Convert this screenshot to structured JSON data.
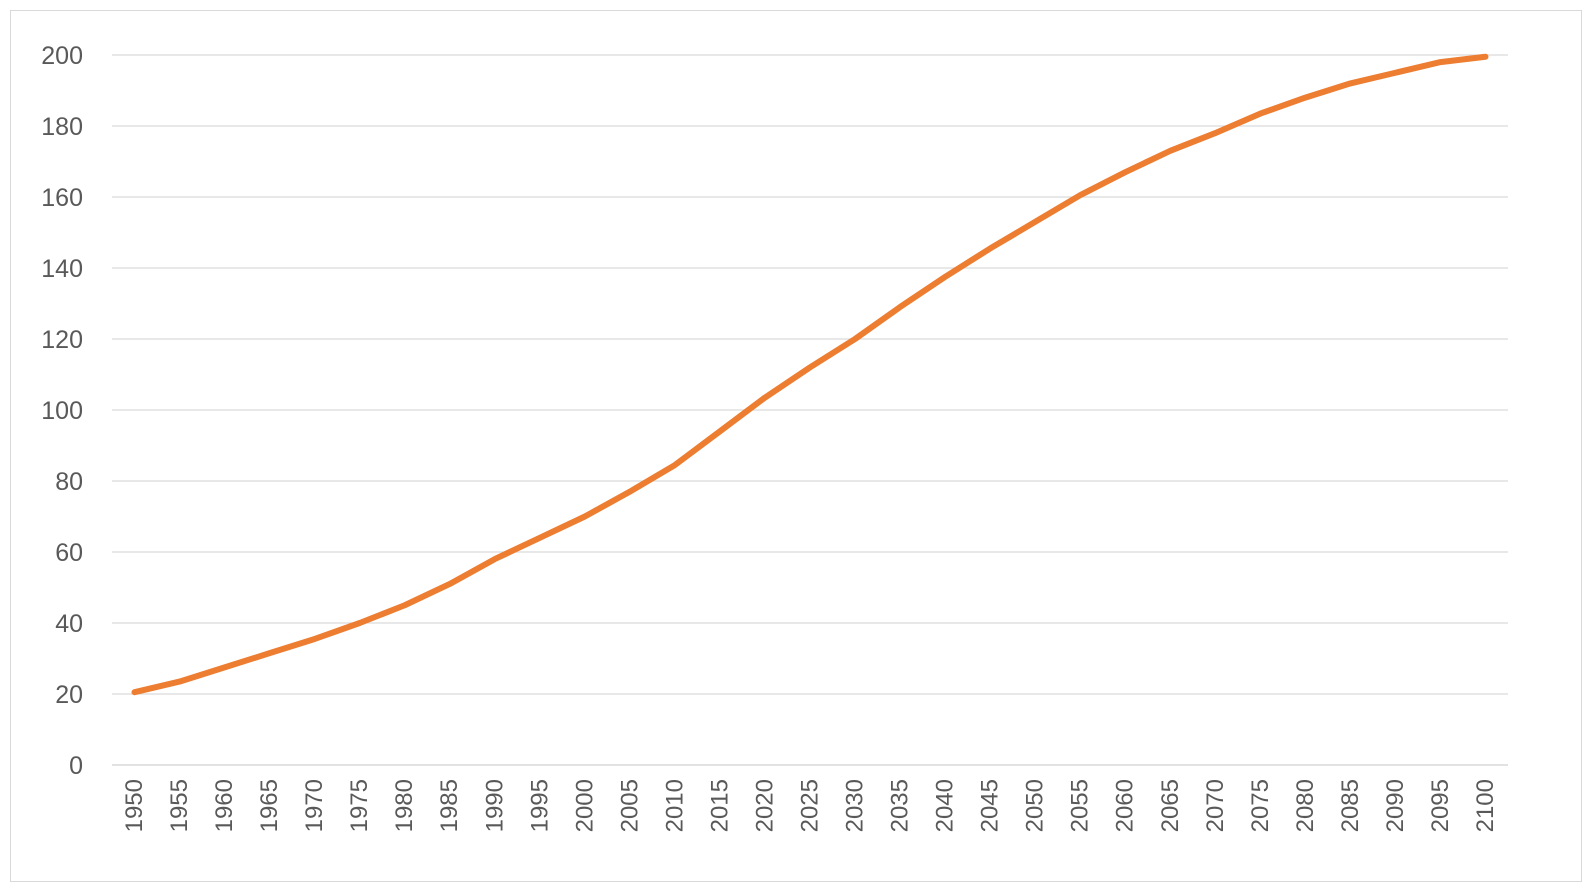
{
  "chart_data": {
    "type": "line",
    "title": "",
    "xlabel": "",
    "ylabel": "",
    "ylim": [
      0,
      200
    ],
    "yticks": [
      0,
      20,
      40,
      60,
      80,
      100,
      120,
      140,
      160,
      180,
      200
    ],
    "grid": true,
    "legend": "none",
    "x": [
      "1950",
      "1955",
      "1960",
      "1965",
      "1970",
      "1975",
      "1980",
      "1985",
      "1990",
      "1995",
      "2000",
      "2005",
      "2010",
      "2015",
      "2020",
      "2025",
      "2030",
      "2035",
      "2040",
      "2045",
      "2050",
      "2055",
      "2060",
      "2065",
      "2070",
      "2075",
      "2080",
      "2085",
      "2090",
      "2095",
      "2100"
    ],
    "series": [
      {
        "color": "#ED7D31",
        "values": [
          20.5,
          23.5,
          27.5,
          31.5,
          35.5,
          40,
          45,
          51,
          58,
          64,
          70,
          77,
          84.5,
          94,
          103.5,
          112,
          120,
          129,
          137.5,
          145.5,
          153,
          160.5,
          167,
          173,
          178,
          183.5,
          188,
          192,
          195,
          198,
          199.5
        ]
      }
    ]
  }
}
